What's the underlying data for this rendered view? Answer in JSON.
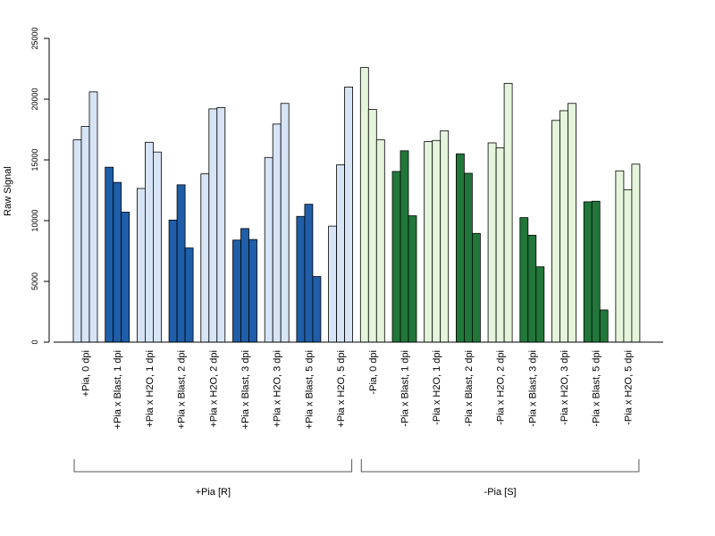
{
  "chart_data": {
    "type": "bar",
    "title": "",
    "ylabel": "Raw Signal",
    "xlabel": "",
    "ylim": [
      0,
      25000
    ],
    "yticks": [
      0,
      5000,
      10000,
      15000,
      20000,
      25000
    ],
    "legend": "none",
    "grid": false,
    "categories": [
      "+Pia, 0 dpi",
      "+Pia x Blast, 1 dpi",
      "+Pia x H2O, 1 dpi",
      "+Pia x Blast, 2 dpi",
      "+Pia x H2O, 2 dpi",
      "+Pia x Blast, 3 dpi",
      "+Pia x H2O, 3 dpi",
      "+Pia x Blast, 5 dpi",
      "+Pia x H2O, 5 dpi",
      "-Pia, 0 dpi",
      "-Pia x Blast, 1 dpi",
      "-Pia x H2O, 1 dpi",
      "-Pia x Blast, 2 dpi",
      "-Pia x H2O, 2 dpi",
      "-Pia x Blast, 3 dpi",
      "-Pia x H2O, 3 dpi",
      "-Pia x Blast, 5 dpi",
      "-Pia x H2O, 5 dpi"
    ],
    "replicates": [
      [
        16650,
        17750,
        20600
      ],
      [
        14400,
        13150,
        10700
      ],
      [
        12650,
        16450,
        15650
      ],
      [
        10050,
        12950,
        7750
      ],
      [
        13850,
        19200,
        19300
      ],
      [
        8400,
        9350,
        8450
      ],
      [
        15200,
        17950,
        19650
      ],
      [
        10350,
        11350,
        5400
      ],
      [
        9550,
        14600,
        21000
      ],
      [
        22600,
        19150,
        16650
      ],
      [
        14050,
        15750,
        10400
      ],
      [
        16500,
        16600,
        17400
      ],
      [
        15500,
        13900,
        8950
      ],
      [
        16400,
        16000,
        21300
      ],
      [
        10250,
        8800,
        6200
      ],
      [
        18250,
        19050,
        19650
      ],
      [
        11550,
        11600,
        2650
      ],
      [
        14100,
        12550,
        14650
      ]
    ],
    "bar_colors": [
      "#d6e4f6",
      "#1f5ea8",
      "#d6e4f6",
      "#1f5ea8",
      "#d6e4f6",
      "#1f5ea8",
      "#d6e4f6",
      "#1f5ea8",
      "#d6e4f6",
      "#e4f5dc",
      "#21773a",
      "#e4f5dc",
      "#21773a",
      "#e4f5dc",
      "#21773a",
      "#e4f5dc",
      "#21773a",
      "#e4f5dc"
    ],
    "groups": [
      {
        "label": "+Pia [R]",
        "first": 0,
        "last": 8
      },
      {
        "label": "-Pia [S]",
        "first": 9,
        "last": 17
      }
    ]
  }
}
